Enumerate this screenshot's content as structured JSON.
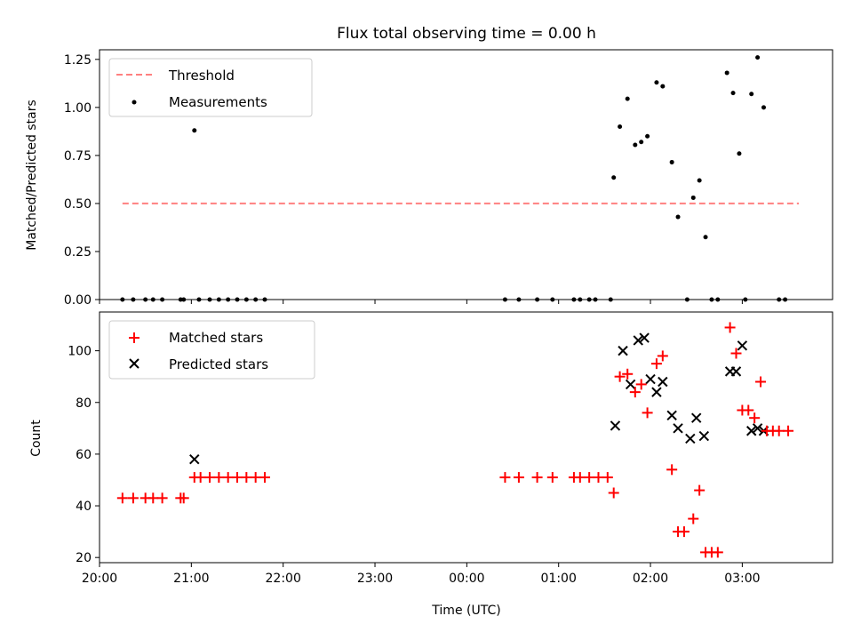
{
  "title": "Flux total observing time = 0.00 h",
  "chart_data": [
    {
      "type": "scatter",
      "title": "Flux total observing time = 0.00 h",
      "xlabel": "",
      "ylabel": "Matched/Predicted stars",
      "xlim": [
        "20:00",
        "03:59"
      ],
      "ylim": [
        0,
        1.3
      ],
      "yticks": [
        "0.00",
        "0.25",
        "0.50",
        "0.75",
        "1.00",
        "1.25"
      ],
      "legend_position": "upper left",
      "threshold": {
        "name": "Threshold",
        "value": 0.5,
        "x_range": [
          "20:15",
          "03:37"
        ],
        "color": "#ff8080"
      },
      "series": [
        {
          "name": "Measurements",
          "color": "#000000",
          "points": [
            [
              "20:15",
              0.0
            ],
            [
              "20:22",
              0.0
            ],
            [
              "20:30",
              0.0
            ],
            [
              "20:35",
              0.0
            ],
            [
              "20:41",
              0.0
            ],
            [
              "20:53",
              0.0
            ],
            [
              "20:55",
              0.0
            ],
            [
              "21:02",
              0.88
            ],
            [
              "21:05",
              0.0
            ],
            [
              "21:12",
              0.0
            ],
            [
              "21:18",
              0.0
            ],
            [
              "21:24",
              0.0
            ],
            [
              "21:30",
              0.0
            ],
            [
              "21:36",
              0.0
            ],
            [
              "21:42",
              0.0
            ],
            [
              "21:48",
              0.0
            ],
            [
              "00:25",
              0.0
            ],
            [
              "00:34",
              0.0
            ],
            [
              "00:46",
              0.0
            ],
            [
              "00:56",
              0.0
            ],
            [
              "01:10",
              0.0
            ],
            [
              "01:14",
              0.0
            ],
            [
              "01:20",
              0.0
            ],
            [
              "01:24",
              0.0
            ],
            [
              "01:34",
              0.0
            ],
            [
              "01:36",
              0.635
            ],
            [
              "01:40",
              0.9
            ],
            [
              "01:45",
              1.045
            ],
            [
              "01:50",
              0.805
            ],
            [
              "01:54",
              0.82
            ],
            [
              "01:58",
              0.85
            ],
            [
              "02:04",
              1.13
            ],
            [
              "02:08",
              1.11
            ],
            [
              "02:14",
              0.715
            ],
            [
              "02:18",
              0.43
            ],
            [
              "02:24",
              0.0
            ],
            [
              "02:28",
              0.53
            ],
            [
              "02:32",
              0.62
            ],
            [
              "02:36",
              0.325
            ],
            [
              "02:40",
              0.0
            ],
            [
              "02:44",
              0.0
            ],
            [
              "02:50",
              1.18
            ],
            [
              "02:54",
              1.075
            ],
            [
              "02:58",
              0.76
            ],
            [
              "03:02",
              0.0
            ],
            [
              "03:06",
              1.07
            ],
            [
              "03:10",
              1.26
            ],
            [
              "03:14",
              1.0
            ],
            [
              "03:24",
              0.0
            ],
            [
              "03:28",
              0.0
            ]
          ]
        }
      ]
    },
    {
      "type": "scatter",
      "title": "",
      "xlabel": "Time (UTC)",
      "ylabel": "Count",
      "xlim": [
        "20:00",
        "03:59"
      ],
      "ylim": [
        18,
        115
      ],
      "yticks": [
        "20",
        "40",
        "60",
        "80",
        "100"
      ],
      "xticks": [
        "20:00",
        "21:00",
        "22:00",
        "23:00",
        "00:00",
        "01:00",
        "02:00",
        "03:00"
      ],
      "legend_position": "upper left",
      "series": [
        {
          "name": "Matched stars",
          "marker": "+",
          "color": "#ff0000",
          "points": [
            [
              "20:15",
              43
            ],
            [
              "20:22",
              43
            ],
            [
              "20:30",
              43
            ],
            [
              "20:35",
              43
            ],
            [
              "20:41",
              43
            ],
            [
              "20:53",
              43
            ],
            [
              "20:55",
              43
            ],
            [
              "21:02",
              51
            ],
            [
              "21:06",
              51
            ],
            [
              "21:12",
              51
            ],
            [
              "21:18",
              51
            ],
            [
              "21:24",
              51
            ],
            [
              "21:30",
              51
            ],
            [
              "21:36",
              51
            ],
            [
              "21:42",
              51
            ],
            [
              "21:48",
              51
            ],
            [
              "00:25",
              51
            ],
            [
              "00:34",
              51
            ],
            [
              "00:46",
              51
            ],
            [
              "00:56",
              51
            ],
            [
              "01:10",
              51
            ],
            [
              "01:14",
              51
            ],
            [
              "01:20",
              51
            ],
            [
              "01:26",
              51
            ],
            [
              "01:32",
              51
            ],
            [
              "01:36",
              45
            ],
            [
              "01:40",
              90
            ],
            [
              "01:45",
              91
            ],
            [
              "01:50",
              84
            ],
            [
              "01:54",
              87
            ],
            [
              "01:58",
              76
            ],
            [
              "02:04",
              95
            ],
            [
              "02:08",
              98
            ],
            [
              "02:14",
              54
            ],
            [
              "02:18",
              30
            ],
            [
              "02:22",
              30
            ],
            [
              "02:28",
              35
            ],
            [
              "02:32",
              46
            ],
            [
              "02:36",
              22
            ],
            [
              "02:40",
              22
            ],
            [
              "02:44",
              22
            ],
            [
              "02:52",
              109
            ],
            [
              "02:56",
              99
            ],
            [
              "03:00",
              77
            ],
            [
              "03:04",
              77
            ],
            [
              "03:08",
              74
            ],
            [
              "03:12",
              88
            ],
            [
              "03:16",
              69
            ],
            [
              "03:20",
              69
            ],
            [
              "03:24",
              69
            ],
            [
              "03:30",
              69
            ]
          ]
        },
        {
          "name": "Predicted stars",
          "marker": "x",
          "color": "#000000",
          "points": [
            [
              "21:02",
              58
            ],
            [
              "01:37",
              71
            ],
            [
              "01:42",
              100
            ],
            [
              "01:47",
              87
            ],
            [
              "01:52",
              104
            ],
            [
              "01:56",
              105
            ],
            [
              "02:00",
              89
            ],
            [
              "02:04",
              84
            ],
            [
              "02:08",
              88
            ],
            [
              "02:14",
              75
            ],
            [
              "02:18",
              70
            ],
            [
              "02:26",
              66
            ],
            [
              "02:30",
              74
            ],
            [
              "02:35",
              67
            ],
            [
              "02:52",
              92
            ],
            [
              "02:56",
              92
            ],
            [
              "03:00",
              102
            ],
            [
              "03:06",
              69
            ],
            [
              "03:10",
              70
            ],
            [
              "03:14",
              69
            ]
          ]
        }
      ]
    }
  ]
}
